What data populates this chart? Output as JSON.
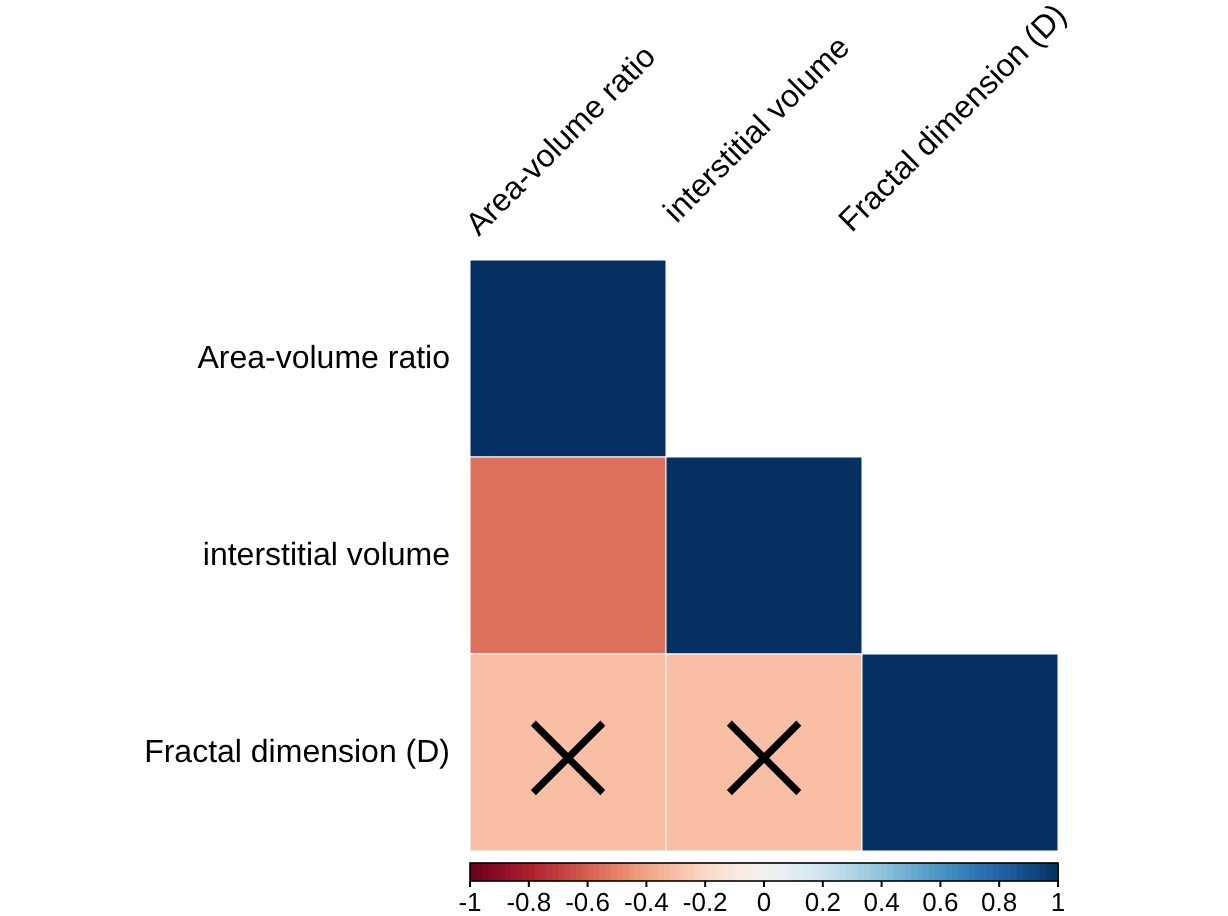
{
  "chart_data": {
    "type": "heatmap",
    "categories": [
      "Area-volume ratio",
      "interstitial volume",
      "Fractal dimension (D)"
    ],
    "y_categories": [
      "Area-volume ratio",
      "interstitial volume",
      "Fractal dimension (D)"
    ],
    "cells": [
      [
        1,
        null,
        null
      ],
      [
        -0.55,
        1,
        null
      ],
      [
        -0.3,
        -0.3,
        1
      ]
    ],
    "cell_labels": [
      [
        null,
        null,
        null
      ],
      [
        null,
        null,
        null
      ],
      [
        "×",
        "×",
        null
      ]
    ],
    "clim": [
      -1,
      1
    ],
    "cticks": [
      -1,
      -0.8,
      -0.6,
      -0.4,
      -0.2,
      0,
      0.2,
      0.4,
      0.6,
      0.8,
      1
    ]
  }
}
